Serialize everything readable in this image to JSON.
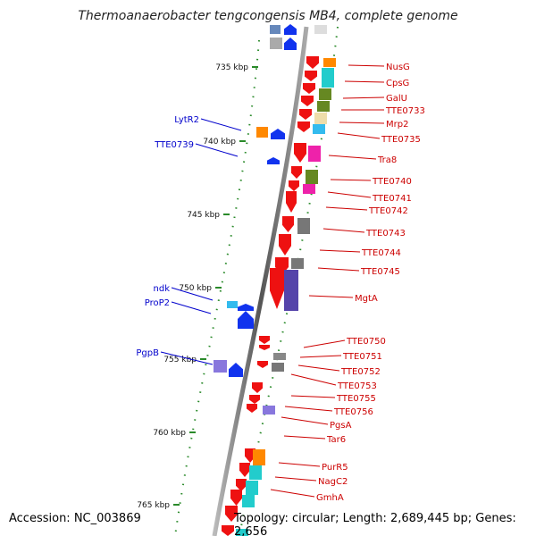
{
  "title": "Thermoanaerobacter tengcongensis MB4, complete genome",
  "footer": {
    "accession": "Accession: NC_003869",
    "summary": "Topology: circular; Length: 2,689,445 bp; Genes: 2,656"
  },
  "colors": {
    "forward_gene": "#ee1111",
    "reverse_gene": "#1133ee",
    "label_forward": "#cc0000",
    "label_reverse": "#0000cc",
    "tick": "#2a8a2a"
  },
  "scale_ticks": [
    "735 kbp",
    "740 kbp",
    "745 kbp",
    "750 kbp",
    "755 kbp",
    "760 kbp",
    "765 kbp"
  ],
  "gene_labels_forward": [
    "NusG",
    "CpsG",
    "GalU",
    "TTE0733",
    "Mrp2",
    "TTE0735",
    "Tra8",
    "TTE0740",
    "TTE0741",
    "TTE0742",
    "TTE0743",
    "TTE0744",
    "TTE0745",
    "MgtA",
    "TTE0750",
    "TTE0751",
    "TTE0752",
    "TTE0753",
    "TTE0755",
    "TTE0756",
    "PgsA",
    "Tar6",
    "PurR5",
    "NagC2",
    "GmhA"
  ],
  "gene_labels_reverse": [
    "LytR2",
    "TTE0739",
    "ndk",
    "ProP2",
    "PgpB"
  ],
  "cog_colors": [
    "#ff8800",
    "#22cccc",
    "#668822",
    "#eeddaa",
    "#ee22aa",
    "#777777",
    "#5544aa",
    "#8877dd",
    "#33bbee"
  ]
}
